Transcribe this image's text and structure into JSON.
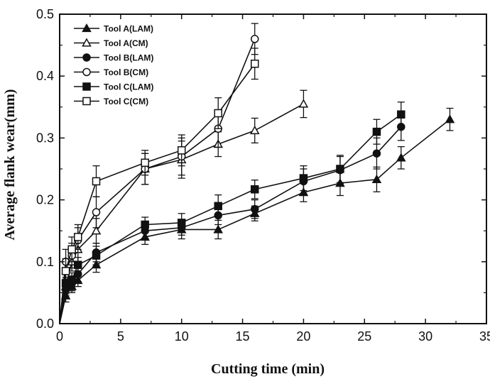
{
  "chart_data": {
    "type": "line",
    "xlabel": "Cutting time (min)",
    "ylabel": "Average flank wear(mm)",
    "xlim": [
      0,
      35
    ],
    "ylim": [
      0,
      0.5
    ],
    "xticks": [
      0,
      5,
      10,
      15,
      20,
      25,
      30,
      35
    ],
    "yticks": [
      0.0,
      0.1,
      0.2,
      0.3,
      0.4,
      0.5
    ],
    "xtick_labels": [
      "0",
      "5",
      "10",
      "15",
      "20",
      "25",
      "30",
      "35"
    ],
    "ytick_labels": [
      "0.0",
      "0.1",
      "0.2",
      "0.3",
      "0.4",
      "0.5"
    ],
    "grid": false,
    "legend_position": "top-left",
    "error_bars": true,
    "series": [
      {
        "name": "Tool A(LAM)",
        "marker": "triangle-filled",
        "x": [
          0,
          0.5,
          1,
          1.5,
          3,
          7,
          10,
          13,
          16,
          20,
          23,
          26,
          28,
          32
        ],
        "y": [
          0,
          0.045,
          0.06,
          0.07,
          0.095,
          0.14,
          0.152,
          0.152,
          0.178,
          0.212,
          0.227,
          0.233,
          0.268,
          0.33
        ],
        "err": [
          0,
          0.01,
          0.01,
          0.01,
          0.012,
          0.012,
          0.015,
          0.015,
          0.012,
          0.015,
          0.02,
          0.02,
          0.018,
          0.018
        ]
      },
      {
        "name": "Tool A(CM)",
        "marker": "triangle-open",
        "x": [
          0,
          0.5,
          1,
          1.5,
          3,
          7,
          10,
          13,
          16,
          20
        ],
        "y": [
          0,
          0.06,
          0.1,
          0.12,
          0.15,
          0.25,
          0.265,
          0.29,
          0.312,
          0.355
        ],
        "err": [
          0,
          0.012,
          0.015,
          0.02,
          0.02,
          0.025,
          0.03,
          0.02,
          0.02,
          0.022
        ]
      },
      {
        "name": "Tool B(LAM)",
        "marker": "circle-filled",
        "x": [
          0,
          0.5,
          1,
          1.5,
          3,
          7,
          10,
          13,
          16,
          20,
          23,
          26,
          28
        ],
        "y": [
          0,
          0.055,
          0.065,
          0.08,
          0.115,
          0.15,
          0.155,
          0.175,
          0.185,
          0.23,
          0.248,
          0.275,
          0.318
        ],
        "err": [
          0,
          0.01,
          0.012,
          0.012,
          0.015,
          0.012,
          0.012,
          0.015,
          0.015,
          0.02,
          0.022,
          0.025,
          0.022
        ]
      },
      {
        "name": "Tool B(CM)",
        "marker": "circle-open",
        "x": [
          0,
          0.5,
          1,
          1.5,
          3,
          7,
          10,
          13,
          16
        ],
        "y": [
          0,
          0.1,
          0.11,
          0.135,
          0.18,
          0.25,
          0.27,
          0.315,
          0.46
        ],
        "err": [
          0,
          0.02,
          0.02,
          0.02,
          0.025,
          0.025,
          0.03,
          0.03,
          0.025
        ]
      },
      {
        "name": "Tool C(LAM)",
        "marker": "square-filled",
        "x": [
          0,
          0.5,
          1,
          1.5,
          3,
          7,
          10,
          13,
          16,
          20,
          23,
          26,
          28
        ],
        "y": [
          0,
          0.065,
          0.07,
          0.095,
          0.11,
          0.16,
          0.163,
          0.19,
          0.217,
          0.235,
          0.25,
          0.31,
          0.338
        ],
        "err": [
          0,
          0.01,
          0.012,
          0.012,
          0.015,
          0.012,
          0.015,
          0.018,
          0.015,
          0.02,
          0.022,
          0.02,
          0.02
        ]
      },
      {
        "name": "Tool C(CM)",
        "marker": "square-open",
        "x": [
          0,
          0.5,
          1,
          1.5,
          3,
          7,
          10,
          13,
          16
        ],
        "y": [
          0,
          0.085,
          0.12,
          0.14,
          0.23,
          0.26,
          0.28,
          0.34,
          0.42
        ],
        "err": [
          0,
          0.02,
          0.02,
          0.02,
          0.025,
          0.02,
          0.025,
          0.025,
          0.025
        ]
      }
    ]
  },
  "legend": {
    "items": [
      "Tool A(LAM)",
      "Tool A(CM)",
      "Tool B(LAM)",
      "Tool B(CM)",
      "Tool C(LAM)",
      "Tool C(CM)"
    ]
  }
}
